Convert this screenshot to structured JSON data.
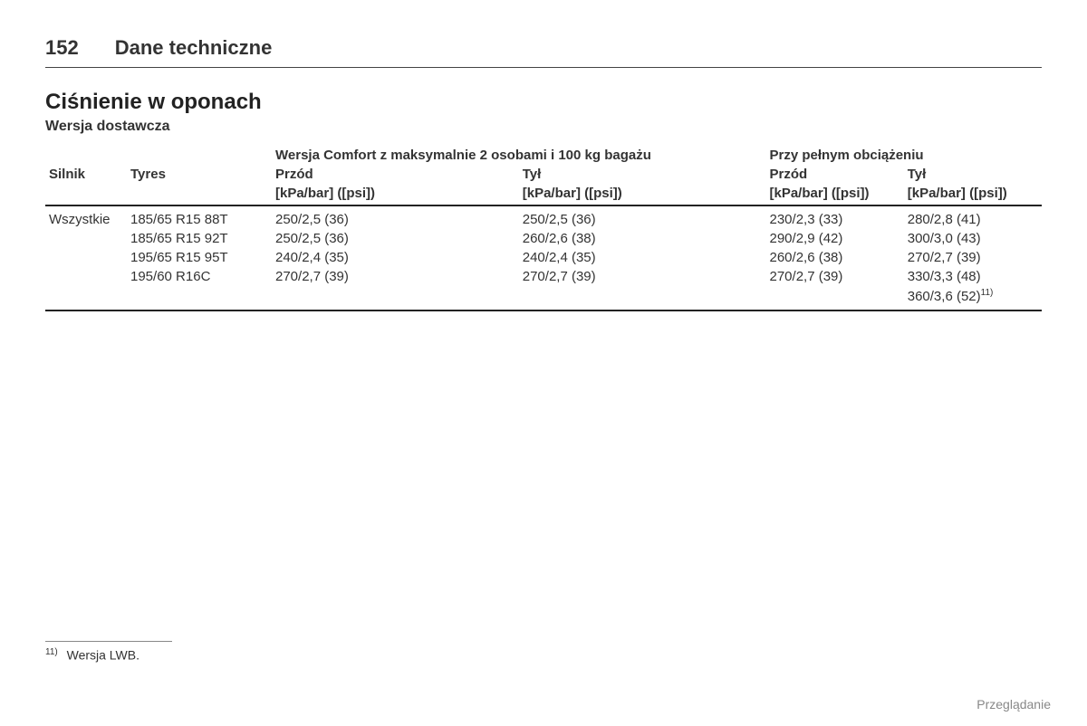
{
  "header": {
    "page_number": "152",
    "page_title": "Dane techniczne"
  },
  "section": {
    "title": "Ciśnienie w oponach",
    "subtitle": "Wersja dostawcza"
  },
  "table": {
    "group_headers": {
      "comfort": "Wersja Comfort z maksymalnie 2 osobami i 100 kg bagażu",
      "full_load": "Przy pełnym obciążeniu"
    },
    "columns": {
      "engine": "Silnik",
      "tyres": "Tyres",
      "front": "Przód",
      "rear": "Tył",
      "unit": "[kPa/bar] ([psi])"
    },
    "rows": [
      {
        "engine": "Wszystkie",
        "tyres": "185/65 R15 88T",
        "comfort_front": "250/2,5 (36)",
        "comfort_rear": "250/2,5 (36)",
        "full_front": "230/2,3 (33)",
        "full_rear": "280/2,8 (41)"
      },
      {
        "engine": "",
        "tyres": "185/65 R15 92T",
        "comfort_front": "250/2,5 (36)",
        "comfort_rear": "260/2,6 (38)",
        "full_front": "290/2,9 (42)",
        "full_rear": "300/3,0 (43)"
      },
      {
        "engine": "",
        "tyres": "195/65 R15 95T",
        "comfort_front": "240/2,4 (35)",
        "comfort_rear": "240/2,4 (35)",
        "full_front": "260/2,6 (38)",
        "full_rear": "270/2,7 (39)"
      },
      {
        "engine": "",
        "tyres": "195/60 R16C",
        "comfort_front": "270/2,7 (39)",
        "comfort_rear": "270/2,7 (39)",
        "full_front": "270/2,7 (39)",
        "full_rear": "330/3,3 (48)"
      }
    ],
    "extra_row": {
      "full_rear": "360/3,6 (52)",
      "footnote_ref": "11)"
    }
  },
  "footnote": {
    "ref": "11)",
    "text": "Wersja LWB."
  },
  "footer": {
    "browsing": "Przeglądanie"
  },
  "style": {
    "background_color": "#ffffff",
    "text_color": "#333333",
    "rule_color": "#222222",
    "muted_color": "#888888"
  }
}
